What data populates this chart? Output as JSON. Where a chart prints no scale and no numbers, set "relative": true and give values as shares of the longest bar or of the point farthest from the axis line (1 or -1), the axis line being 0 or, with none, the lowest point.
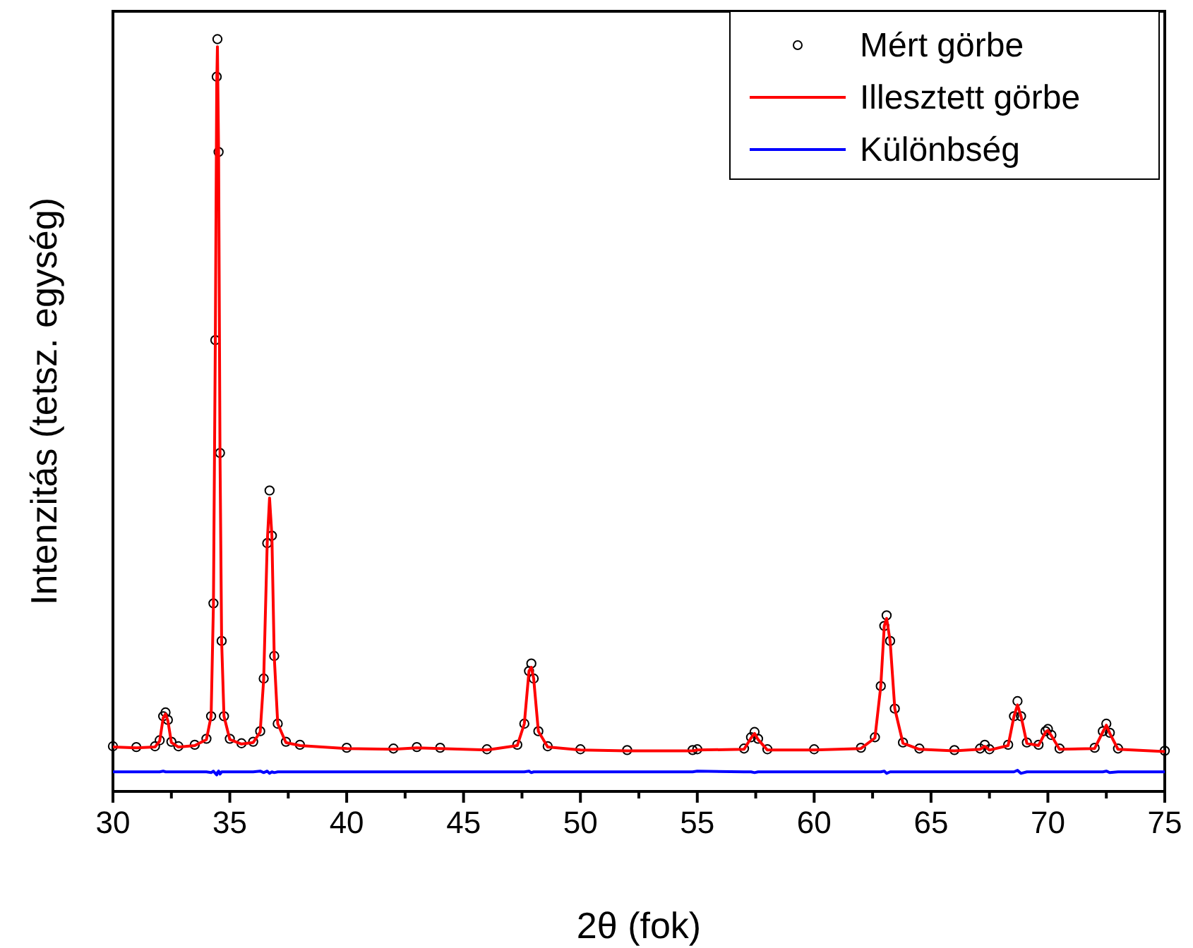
{
  "chart_data": {
    "type": "scatter",
    "relative": true,
    "xlabel": "2θ (fok)",
    "ylabel": "Intenzitás (tetsz. egység)",
    "xlim": [
      30,
      75
    ],
    "xticks": [
      30,
      {
        "value": 32.5,
        "label": null
      },
      35,
      {
        "value": 37.5,
        "label": null
      },
      40,
      {
        "value": 42.5,
        "label": null
      },
      45,
      {
        "value": 47.5,
        "label": null
      },
      50,
      {
        "value": 52.5,
        "label": null
      },
      55,
      {
        "value": 57.5,
        "label": null
      },
      60,
      {
        "value": 62.5,
        "label": null
      },
      65,
      {
        "value": 67.5,
        "label": null
      },
      70,
      {
        "value": 72.5,
        "label": null
      },
      75
    ],
    "legend": "top right",
    "grid": false,
    "x": [
      30,
      31,
      31.8,
      32,
      32.15,
      32.25,
      32.35,
      32.5,
      32.8,
      33.5,
      34,
      34.2,
      34.3,
      34.38,
      34.44,
      34.47,
      34.52,
      34.58,
      34.65,
      34.75,
      35,
      35.5,
      36,
      36.3,
      36.45,
      36.6,
      36.7,
      36.8,
      36.9,
      37.05,
      37.4,
      38,
      40,
      42,
      43,
      44,
      46,
      47.3,
      47.6,
      47.8,
      47.9,
      48,
      48.2,
      48.6,
      50,
      52,
      54.8,
      55,
      57,
      57.3,
      57.45,
      57.6,
      58,
      60,
      62,
      62.6,
      62.85,
      63,
      63.1,
      63.25,
      63.45,
      63.8,
      64.5,
      66,
      67.1,
      67.3,
      67.5,
      68.3,
      68.55,
      68.7,
      68.85,
      69.1,
      69.6,
      69.9,
      70,
      70.15,
      70.5,
      72,
      72.35,
      72.5,
      72.65,
      73,
      75
    ],
    "series": [
      {
        "name": "Mért görbe",
        "marker": "circle",
        "color": "#000000",
        "values": [
          0.06,
          0.059,
          0.06,
          0.068,
          0.1,
          0.105,
          0.095,
          0.066,
          0.06,
          0.062,
          0.07,
          0.1,
          0.25,
          0.6,
          0.95,
          1,
          0.85,
          0.45,
          0.2,
          0.1,
          0.07,
          0.064,
          0.066,
          0.08,
          0.15,
          0.33,
          0.4,
          0.34,
          0.18,
          0.09,
          0.066,
          0.062,
          0.058,
          0.057,
          0.059,
          0.058,
          0.056,
          0.062,
          0.09,
          0.16,
          0.17,
          0.15,
          0.08,
          0.06,
          0.056,
          0.055,
          0.055,
          0.056,
          0.057,
          0.072,
          0.079,
          0.07,
          0.056,
          0.056,
          0.058,
          0.072,
          0.14,
          0.22,
          0.234,
          0.2,
          0.11,
          0.065,
          0.057,
          0.055,
          0.057,
          0.062,
          0.056,
          0.062,
          0.1,
          0.12,
          0.1,
          0.065,
          0.062,
          0.08,
          0.083,
          0.075,
          0.057,
          0.058,
          0.08,
          0.09,
          0.078,
          0.057,
          0.054
        ]
      },
      {
        "name": "Illesztett görbe",
        "type": "line",
        "color": "#ff0000",
        "values": [
          0.059,
          0.058,
          0.059,
          0.067,
          0.098,
          0.103,
          0.094,
          0.065,
          0.059,
          0.061,
          0.069,
          0.1,
          0.25,
          0.6,
          0.94,
          0.99,
          0.85,
          0.45,
          0.2,
          0.1,
          0.069,
          0.063,
          0.065,
          0.079,
          0.15,
          0.33,
          0.39,
          0.34,
          0.18,
          0.09,
          0.065,
          0.061,
          0.057,
          0.056,
          0.058,
          0.057,
          0.055,
          0.061,
          0.09,
          0.16,
          0.165,
          0.15,
          0.08,
          0.059,
          0.055,
          0.054,
          0.054,
          0.055,
          0.056,
          0.071,
          0.077,
          0.069,
          0.055,
          0.055,
          0.057,
          0.071,
          0.14,
          0.22,
          0.23,
          0.2,
          0.11,
          0.064,
          0.056,
          0.054,
          0.056,
          0.06,
          0.055,
          0.061,
          0.1,
          0.115,
          0.1,
          0.064,
          0.061,
          0.079,
          0.081,
          0.074,
          0.056,
          0.057,
          0.079,
          0.088,
          0.077,
          0.056,
          0.053
        ]
      },
      {
        "name": "Különbség",
        "type": "line",
        "color": "#0000ff",
        "values": [
          0.026,
          0.026,
          0.026,
          0.026,
          0.027,
          0.026,
          0.026,
          0.026,
          0.026,
          0.026,
          0.026,
          0.025,
          0.027,
          0.024,
          0.022,
          0.025,
          0.027,
          0.023,
          0.026,
          0.026,
          0.026,
          0.026,
          0.026,
          0.027,
          0.025,
          0.027,
          0.024,
          0.026,
          0.025,
          0.026,
          0.026,
          0.026,
          0.026,
          0.026,
          0.026,
          0.026,
          0.026,
          0.026,
          0.026,
          0.027,
          0.025,
          0.026,
          0.026,
          0.026,
          0.026,
          0.026,
          0.026,
          0.027,
          0.026,
          0.026,
          0.025,
          0.026,
          0.026,
          0.026,
          0.026,
          0.026,
          0.026,
          0.027,
          0.024,
          0.026,
          0.026,
          0.026,
          0.026,
          0.026,
          0.026,
          0.026,
          0.026,
          0.026,
          0.026,
          0.028,
          0.024,
          0.026,
          0.026,
          0.026,
          0.026,
          0.026,
          0.026,
          0.026,
          0.026,
          0.027,
          0.025,
          0.026,
          0.026
        ]
      }
    ]
  }
}
